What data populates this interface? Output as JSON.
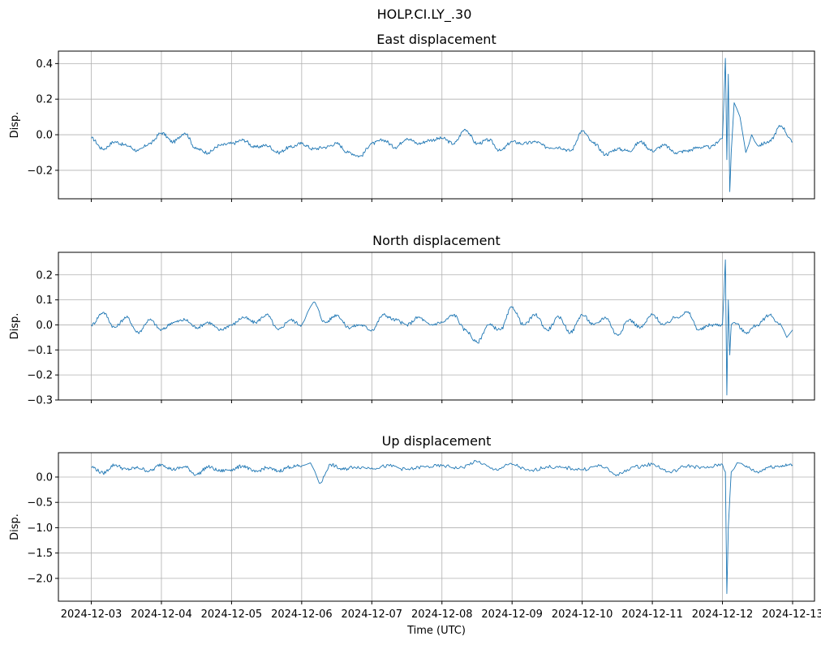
{
  "figure": {
    "title": "HOLP.CI.LY_.30"
  },
  "chart_data": [
    {
      "type": "line",
      "title": "East displacement",
      "ylabel": "Disp.",
      "xlabel": "",
      "xlim": [
        "2024-12-02T12:45:00",
        "2024-12-13T07:30:00"
      ],
      "ylim": [
        -0.36,
        0.47
      ],
      "yticks": [
        -0.2,
        0.0,
        0.2,
        0.4
      ],
      "ytick_labels": [
        "−0.2",
        "0.0",
        "0.2",
        "0.4"
      ],
      "grid": true,
      "series": [
        {
          "color": "#1f77b4",
          "x": [
            "2024-12-03T00:00",
            "2024-12-03T04:00",
            "2024-12-03T08:00",
            "2024-12-03T12:00",
            "2024-12-03T16:00",
            "2024-12-03T20:00",
            "2024-12-04T00:00",
            "2024-12-04T04:00",
            "2024-12-04T08:00",
            "2024-12-04T12:00",
            "2024-12-04T16:00",
            "2024-12-04T20:00",
            "2024-12-05T00:00",
            "2024-12-05T04:00",
            "2024-12-05T08:00",
            "2024-12-05T12:00",
            "2024-12-05T16:00",
            "2024-12-05T20:00",
            "2024-12-06T00:00",
            "2024-12-06T04:00",
            "2024-12-06T08:00",
            "2024-12-06T12:00",
            "2024-12-06T16:00",
            "2024-12-06T20:00",
            "2024-12-07T00:00",
            "2024-12-07T04:00",
            "2024-12-07T08:00",
            "2024-12-07T12:00",
            "2024-12-07T16:00",
            "2024-12-07T20:00",
            "2024-12-08T00:00",
            "2024-12-08T04:00",
            "2024-12-08T08:00",
            "2024-12-08T12:00",
            "2024-12-08T16:00",
            "2024-12-08T20:00",
            "2024-12-09T00:00",
            "2024-12-09T04:00",
            "2024-12-09T08:00",
            "2024-12-09T12:00",
            "2024-12-09T16:00",
            "2024-12-09T20:00",
            "2024-12-10T00:00",
            "2024-12-10T04:00",
            "2024-12-10T08:00",
            "2024-12-10T12:00",
            "2024-12-10T16:00",
            "2024-12-10T20:00",
            "2024-12-11T00:00",
            "2024-12-11T04:00",
            "2024-12-11T08:00",
            "2024-12-11T12:00",
            "2024-12-11T16:00",
            "2024-12-11T20:00",
            "2024-12-12T00:00",
            "2024-12-12T01:00",
            "2024-12-12T01:30",
            "2024-12-12T02:00",
            "2024-12-12T02:30",
            "2024-12-12T03:00",
            "2024-12-12T04:00",
            "2024-12-12T06:00",
            "2024-12-12T08:00",
            "2024-12-12T10:00",
            "2024-12-12T12:00",
            "2024-12-12T16:00",
            "2024-12-12T20:00",
            "2024-12-13T00:00"
          ],
          "y": [
            -0.02,
            -0.08,
            -0.04,
            -0.06,
            -0.09,
            -0.05,
            0.01,
            -0.04,
            0.01,
            -0.08,
            -0.1,
            -0.06,
            -0.05,
            -0.03,
            -0.07,
            -0.06,
            -0.1,
            -0.07,
            -0.05,
            -0.08,
            -0.07,
            -0.05,
            -0.1,
            -0.12,
            -0.05,
            -0.03,
            -0.07,
            -0.02,
            -0.05,
            -0.03,
            -0.02,
            -0.05,
            0.03,
            -0.05,
            -0.03,
            -0.09,
            -0.04,
            -0.05,
            -0.04,
            -0.07,
            -0.07,
            -0.09,
            0.02,
            -0.05,
            -0.11,
            -0.08,
            -0.09,
            -0.04,
            -0.09,
            -0.06,
            -0.1,
            -0.09,
            -0.07,
            -0.07,
            -0.02,
            0.43,
            -0.14,
            0.34,
            -0.32,
            -0.1,
            0.18,
            0.1,
            -0.1,
            0.0,
            -0.06,
            -0.04,
            0.05,
            -0.04
          ]
        }
      ]
    },
    {
      "type": "line",
      "title": "North displacement",
      "ylabel": "Disp.",
      "xlabel": "",
      "xlim": [
        "2024-12-02T12:45:00",
        "2024-12-13T07:30:00"
      ],
      "ylim": [
        -0.3,
        0.29
      ],
      "yticks": [
        -0.3,
        -0.2,
        -0.1,
        0.0,
        0.1,
        0.2
      ],
      "ytick_labels": [
        "−0.3",
        "−0.2",
        "−0.1",
        "0.0",
        "0.1",
        "0.2"
      ],
      "grid": true,
      "series": [
        {
          "color": "#1f77b4",
          "x": [
            "2024-12-03T00:00",
            "2024-12-03T04:00",
            "2024-12-03T08:00",
            "2024-12-03T12:00",
            "2024-12-03T16:00",
            "2024-12-03T20:00",
            "2024-12-04T00:00",
            "2024-12-04T04:00",
            "2024-12-04T08:00",
            "2024-12-04T12:00",
            "2024-12-04T16:00",
            "2024-12-04T20:00",
            "2024-12-05T00:00",
            "2024-12-05T04:00",
            "2024-12-05T08:00",
            "2024-12-05T12:00",
            "2024-12-05T16:00",
            "2024-12-05T20:00",
            "2024-12-06T00:00",
            "2024-12-06T02:00",
            "2024-12-06T04:00",
            "2024-12-06T08:00",
            "2024-12-06T12:00",
            "2024-12-06T16:00",
            "2024-12-06T20:00",
            "2024-12-07T00:00",
            "2024-12-07T04:00",
            "2024-12-07T08:00",
            "2024-12-07T12:00",
            "2024-12-07T16:00",
            "2024-12-07T20:00",
            "2024-12-08T00:00",
            "2024-12-08T04:00",
            "2024-12-08T08:00",
            "2024-12-08T12:00",
            "2024-12-08T16:00",
            "2024-12-08T20:00",
            "2024-12-09T00:00",
            "2024-12-09T04:00",
            "2024-12-09T08:00",
            "2024-12-09T12:00",
            "2024-12-09T16:00",
            "2024-12-09T20:00",
            "2024-12-10T00:00",
            "2024-12-10T04:00",
            "2024-12-10T08:00",
            "2024-12-10T12:00",
            "2024-12-10T16:00",
            "2024-12-10T20:00",
            "2024-12-11T00:00",
            "2024-12-11T04:00",
            "2024-12-11T08:00",
            "2024-12-11T12:00",
            "2024-12-11T16:00",
            "2024-12-11T20:00",
            "2024-12-12T00:00",
            "2024-12-12T01:00",
            "2024-12-12T01:30",
            "2024-12-12T02:00",
            "2024-12-12T02:30",
            "2024-12-12T03:00",
            "2024-12-12T04:00",
            "2024-12-12T08:00",
            "2024-12-12T12:00",
            "2024-12-12T16:00",
            "2024-12-12T20:00",
            "2024-12-12T22:00",
            "2024-12-13T00:00"
          ],
          "y": [
            0.0,
            0.05,
            -0.01,
            0.03,
            -0.03,
            0.02,
            -0.02,
            0.01,
            0.02,
            -0.01,
            0.01,
            -0.02,
            0.0,
            0.03,
            0.01,
            0.04,
            -0.02,
            0.02,
            0.0,
            0.05,
            0.09,
            0.01,
            0.04,
            -0.01,
            0.0,
            -0.02,
            0.04,
            0.02,
            0.0,
            0.03,
            0.0,
            0.01,
            0.04,
            -0.02,
            -0.07,
            0.0,
            -0.02,
            0.07,
            0.0,
            0.04,
            -0.02,
            0.03,
            -0.03,
            0.04,
            0.0,
            0.03,
            -0.04,
            0.02,
            -0.01,
            0.04,
            0.0,
            0.03,
            0.05,
            -0.02,
            0.0,
            0.0,
            0.26,
            -0.28,
            0.1,
            -0.12,
            0.0,
            0.01,
            -0.03,
            0.0,
            0.04,
            0.0,
            -0.05,
            -0.02
          ]
        }
      ]
    },
    {
      "type": "line",
      "title": "Up displacement",
      "ylabel": "Disp.",
      "xlabel": "Time (UTC)",
      "xlim": [
        "2024-12-02T12:45:00",
        "2024-12-13T07:30:00"
      ],
      "ylim": [
        -2.45,
        0.48
      ],
      "yticks": [
        -2.0,
        -1.5,
        -1.0,
        -0.5,
        0.0
      ],
      "ytick_labels": [
        "−2.0",
        "−1.5",
        "−1.0",
        "−0.5",
        "0.0"
      ],
      "xticks": [
        "2024-12-03",
        "2024-12-04",
        "2024-12-05",
        "2024-12-06",
        "2024-12-07",
        "2024-12-08",
        "2024-12-09",
        "2024-12-10",
        "2024-12-11",
        "2024-12-12",
        "2024-12-13"
      ],
      "grid": true,
      "series": [
        {
          "color": "#1f77b4",
          "x": [
            "2024-12-03T00:00",
            "2024-12-03T04:00",
            "2024-12-03T08:00",
            "2024-12-03T12:00",
            "2024-12-03T16:00",
            "2024-12-03T20:00",
            "2024-12-04T00:00",
            "2024-12-04T04:00",
            "2024-12-04T08:00",
            "2024-12-04T12:00",
            "2024-12-04T16:00",
            "2024-12-04T20:00",
            "2024-12-05T00:00",
            "2024-12-05T04:00",
            "2024-12-05T08:00",
            "2024-12-05T12:00",
            "2024-12-05T16:00",
            "2024-12-05T20:00",
            "2024-12-06T00:00",
            "2024-12-06T03:00",
            "2024-12-06T06:00",
            "2024-12-06T10:00",
            "2024-12-06T14:00",
            "2024-12-06T18:00",
            "2024-12-07T00:00",
            "2024-12-07T06:00",
            "2024-12-07T12:00",
            "2024-12-07T18:00",
            "2024-12-08T00:00",
            "2024-12-08T06:00",
            "2024-12-08T12:00",
            "2024-12-08T18:00",
            "2024-12-09T00:00",
            "2024-12-09T06:00",
            "2024-12-09T12:00",
            "2024-12-09T18:00",
            "2024-12-10T00:00",
            "2024-12-10T06:00",
            "2024-12-10T12:00",
            "2024-12-10T18:00",
            "2024-12-11T00:00",
            "2024-12-11T06:00",
            "2024-12-11T12:00",
            "2024-12-11T18:00",
            "2024-12-12T00:00",
            "2024-12-12T01:00",
            "2024-12-12T01:30",
            "2024-12-12T02:00",
            "2024-12-12T03:00",
            "2024-12-12T05:00",
            "2024-12-12T08:00",
            "2024-12-12T12:00",
            "2024-12-12T16:00",
            "2024-12-12T20:00",
            "2024-12-13T00:00"
          ],
          "y": [
            0.2,
            0.08,
            0.24,
            0.15,
            0.18,
            0.12,
            0.25,
            0.15,
            0.2,
            0.05,
            0.2,
            0.12,
            0.15,
            0.22,
            0.1,
            0.18,
            0.12,
            0.2,
            0.22,
            0.28,
            -0.12,
            0.24,
            0.15,
            0.2,
            0.18,
            0.22,
            0.15,
            0.2,
            0.22,
            0.18,
            0.3,
            0.15,
            0.25,
            0.12,
            0.2,
            0.18,
            0.15,
            0.22,
            0.05,
            0.2,
            0.25,
            0.1,
            0.22,
            0.18,
            0.25,
            0.1,
            -2.3,
            -1.0,
            0.1,
            0.28,
            0.2,
            0.1,
            0.2,
            0.22,
            0.24
          ]
        }
      ]
    }
  ]
}
